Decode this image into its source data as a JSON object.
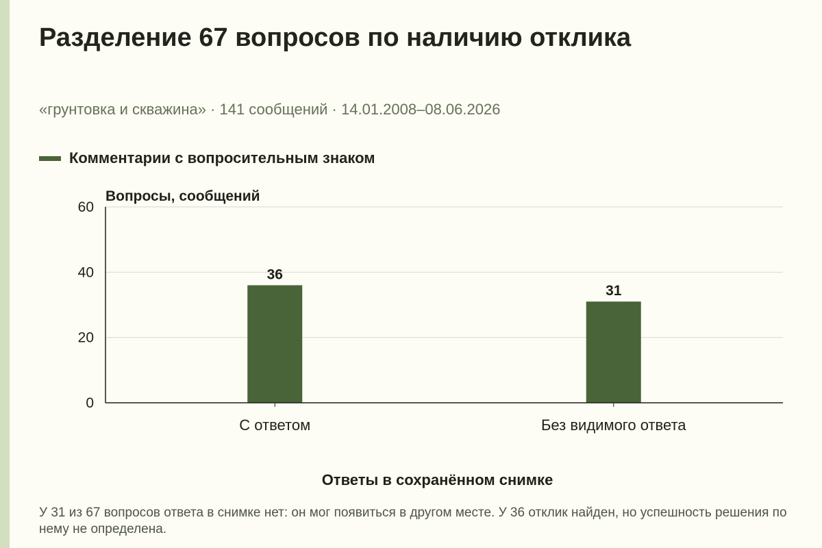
{
  "colors": {
    "background": "#fdfcf5",
    "accent_stripe": "#d3dfbf",
    "bar": "#4a6439",
    "grid": "#d9d9d0",
    "axis": "#1f2118",
    "subtitle": "#667158"
  },
  "header": {
    "title": "Разделение 67 вопросов по наличию отклика",
    "subtitle": "«грунтовка и скважина» · 141 сообщений · 14.01.2008–08.06.2026"
  },
  "legend": {
    "label": "Комментарии с вопросительным знаком"
  },
  "caption": "У 31 из 67 вопросов ответа в снимке нет: он мог появиться в другом месте. У 36 отклик найден, но успешность решения по нему не определена.",
  "chart_data": {
    "type": "bar",
    "categories": [
      "С ответом",
      "Без видимого ответа"
    ],
    "values": [
      36,
      31
    ],
    "value_labels": [
      "36",
      "31"
    ],
    "series": [
      {
        "name": "Комментарии с вопросительным знаком",
        "values": [
          36,
          31
        ]
      }
    ],
    "title": "Разделение 67 вопросов по наличию отклика",
    "xlabel": "Ответы в сохранённом снимке",
    "ylabel": "Вопросы, сообщений",
    "ylim": [
      0,
      60
    ],
    "yticks": [
      0,
      20,
      40,
      60
    ],
    "ytick_labels": [
      "0",
      "20",
      "40",
      "60"
    ],
    "grid": true,
    "legend_position": "top-left"
  }
}
